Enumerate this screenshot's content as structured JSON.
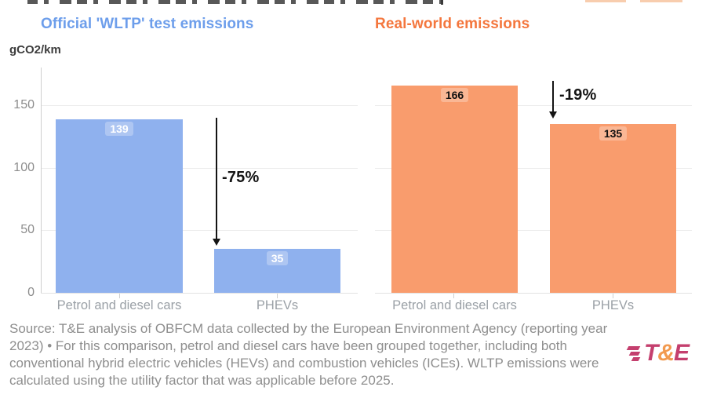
{
  "charts": {
    "unit_label": "gCO2/km"
  },
  "chart_data": [
    {
      "type": "bar",
      "title": "Official 'WLTP' test emissions",
      "title_color": "#6d9eeb",
      "categories": [
        "Petrol and diesel cars",
        "PHEVs"
      ],
      "values": [
        139,
        35
      ],
      "yticks": [
        0,
        50,
        100,
        150
      ],
      "ylim": [
        0,
        180
      ],
      "ylabel": "gCO2/km",
      "grid": true,
      "bar_color": "#8fb1ee",
      "value_label_color": "#ffffff",
      "annotation": {
        "label": "-75%",
        "from_value": 139,
        "to_value": 35
      }
    },
    {
      "type": "bar",
      "title": "Real-world emissions",
      "title_color": "#f4773e",
      "categories": [
        "Petrol and diesel cars",
        "PHEVs"
      ],
      "values": [
        166,
        135
      ],
      "yticks": [
        0,
        50,
        100,
        150
      ],
      "ylim": [
        0,
        180
      ],
      "ylabel": "gCO2/km",
      "grid": true,
      "bar_color": "#f99c6d",
      "value_label_color": "#111111",
      "annotation": {
        "label": "-19%",
        "from_value": 166,
        "to_value": 135
      }
    }
  ],
  "footer": {
    "source_text": "Source: T&E analysis of OBFCM data collected by the European Environment Agency (reporting year 2023) • For this comparison, petrol and diesel cars have been grouped together, including both conventional hybrid electric vehicles (HEVs) and combustion vehicles (ICEs). WLTP emissions were calculated using the utility factor that was applicable before 2025.",
    "logo": {
      "t": "T",
      "amp": "&",
      "e": "E"
    }
  }
}
